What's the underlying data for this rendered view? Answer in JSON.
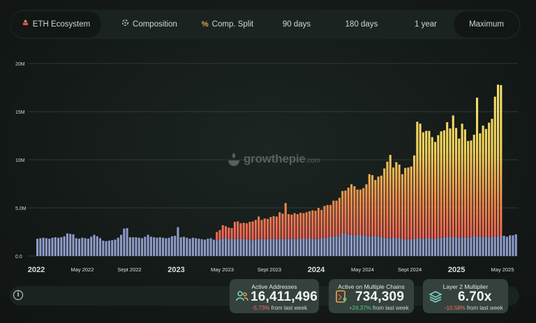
{
  "tabs": [
    {
      "label": "ETH Ecosystem",
      "icon": "eth-ecosystem-icon",
      "active": true
    },
    {
      "label": "Composition",
      "icon": "composition-icon",
      "active": false
    },
    {
      "label": "Comp. Split",
      "icon": "percent-icon",
      "active": false
    },
    {
      "label": "90 days",
      "active": false
    },
    {
      "label": "180 days",
      "active": false
    },
    {
      "label": "1 year",
      "active": false
    },
    {
      "label": "Maximum",
      "active": true
    }
  ],
  "watermark": {
    "brand": "growthepie",
    "domain": ".com"
  },
  "chart_data": {
    "type": "bar",
    "stacked": true,
    "yticks": [
      "0.0",
      "5.0M",
      "10M",
      "15M",
      "20M"
    ],
    "ylim": [
      0,
      20000000
    ],
    "xlim": [
      "2022-01-01",
      "2025-06-10"
    ],
    "xtick_labels": [
      {
        "label": "2022",
        "date": "2022-01-01",
        "bold": true
      },
      {
        "label": "May 2022",
        "date": "2022-05-01",
        "bold": false
      },
      {
        "label": "Sept 2022",
        "date": "2022-09-01",
        "bold": false
      },
      {
        "label": "2023",
        "date": "2023-01-01",
        "bold": true
      },
      {
        "label": "May 2023",
        "date": "2023-05-01",
        "bold": false
      },
      {
        "label": "Sept 2023",
        "date": "2023-09-01",
        "bold": false
      },
      {
        "label": "2024",
        "date": "2024-01-01",
        "bold": true
      },
      {
        "label": "May 2024",
        "date": "2024-05-01",
        "bold": false
      },
      {
        "label": "Sept 2024",
        "date": "2024-09-01",
        "bold": false
      },
      {
        "label": "2025",
        "date": "2025-01-01",
        "bold": true
      },
      {
        "label": "May 2025",
        "date": "2025-05-01",
        "bold": false
      }
    ],
    "colors": {
      "base": "#8e9bc8",
      "mid": "#e9515a",
      "top": "#f2d35b",
      "grid": "#39433f"
    },
    "series": [
      {
        "values": [
          1800000,
          1850000,
          1900000,
          1850000,
          1800000,
          1900000,
          1950000,
          1900000,
          1950000,
          2050000,
          2350000,
          2300000,
          2250000,
          1850000,
          1800000,
          1900000,
          1850000,
          1800000,
          2000000,
          2200000,
          2050000,
          1850000,
          1600000,
          1550000,
          1600000,
          1650000,
          1700000,
          1900000,
          2200000,
          2850000,
          2900000,
          1950000,
          1950000,
          1950000,
          1900000,
          1850000,
          2000000,
          2200000,
          2000000,
          1950000,
          1900000,
          1950000,
          1900000,
          1850000,
          1900000,
          2050000,
          2100000,
          3000000,
          1950000,
          2000000,
          1900000,
          1800000,
          1900000,
          1850000,
          1800000,
          1750000,
          1700000,
          1800000,
          1850000,
          1700000,
          1650000,
          1750000,
          1800000,
          1850000,
          1750000,
          1800000,
          1750000,
          1800000,
          1800000,
          1750000,
          1700000,
          1700000,
          1650000,
          1700000,
          1750000,
          1750000,
          1700000,
          1750000,
          1800000,
          1800000,
          1750000,
          1800000,
          1750000,
          1800000,
          1750000,
          1800000,
          1800000,
          1750000,
          1800000,
          1850000,
          1800000,
          1850000,
          1800000,
          1750000,
          1800000,
          1850000,
          1900000,
          1900000,
          2000000,
          2050000,
          2100000,
          2050000,
          2400000,
          2350000,
          2200000,
          2200000,
          2150000,
          2250000,
          2200000,
          2100000,
          2150000,
          2050000,
          2050000,
          2150000,
          2000000,
          1950000,
          1900000,
          1900000,
          1800000,
          1950000,
          1850000,
          1850000,
          1800000,
          1700000,
          1750000,
          1750000,
          1800000,
          1850000,
          1800000,
          1800000,
          1850000,
          1850000,
          1800000,
          1800000,
          1850000,
          1900000,
          1950000,
          2000000,
          1950000,
          2000000,
          1950000,
          1900000,
          1950000,
          1950000,
          1900000,
          2000000,
          2100000,
          2050000,
          1950000,
          2000000,
          2050000,
          1950000,
          2000000,
          2050000,
          2000000,
          2100000,
          2100000,
          2000000,
          2150000,
          2150000,
          2250000
        ]
      },
      {
        "values": [
          0,
          0,
          0,
          0,
          0,
          0,
          0,
          0,
          0,
          0,
          0,
          0,
          0,
          0,
          0,
          0,
          0,
          0,
          0,
          0,
          0,
          0,
          0,
          0,
          0,
          0,
          0,
          0,
          0,
          0,
          0,
          0,
          0,
          0,
          0,
          0,
          0,
          0,
          0,
          0,
          0,
          0,
          0,
          0,
          0,
          0,
          0,
          0,
          0,
          0,
          0,
          0,
          0,
          0,
          0,
          0,
          0,
          0,
          0,
          0,
          200000,
          250000,
          300000,
          350000,
          400000,
          400000,
          450000,
          500000,
          500000,
          550000,
          600000,
          650000,
          650000,
          700000,
          700000,
          750000,
          750000,
          800000,
          800000,
          850000,
          900000,
          900000,
          950000,
          1000000,
          1000000,
          1050000,
          1050000,
          1100000,
          1100000,
          1150000,
          1150000,
          1200000,
          1200000,
          1250000,
          1300000,
          1300000,
          1350000,
          1350000,
          1400000,
          1400000,
          1450000,
          1450000,
          1500000,
          1550000,
          1550000,
          1550000,
          1600000,
          1600000,
          1650000,
          1650000,
          1700000,
          1750000,
          1750000,
          1800000,
          1850000,
          1850000,
          1900000,
          1900000,
          1950000,
          1950000,
          2000000,
          2050000,
          2100000,
          2100000,
          2150000,
          2200000,
          2250000,
          2300000,
          2350000,
          2400000,
          2450000,
          2500000,
          2550000,
          2600000,
          2650000,
          2700000,
          2750000,
          2800000,
          2850000,
          2900000,
          2950000,
          3000000,
          3050000,
          3100000,
          3150000,
          3200000,
          3250000,
          3300000,
          3350000,
          3400000,
          3450000,
          3500000,
          3550000,
          3600000,
          3650000,
          3700000
        ]
      },
      {
        "values": [
          0,
          0,
          0,
          0,
          0,
          0,
          0,
          0,
          0,
          0,
          0,
          0,
          0,
          0,
          0,
          0,
          0,
          0,
          0,
          0,
          0,
          0,
          0,
          0,
          0,
          0,
          0,
          0,
          0,
          0,
          0,
          0,
          0,
          0,
          0,
          0,
          0,
          0,
          0,
          0,
          0,
          0,
          0,
          0,
          0,
          0,
          0,
          0,
          0,
          0,
          0,
          0,
          0,
          0,
          0,
          0,
          0,
          0,
          0,
          0,
          650000,
          700000,
          1100000,
          900000,
          800000,
          700000,
          1350000,
          1300000,
          1100000,
          1150000,
          1100000,
          1200000,
          1300000,
          1350000,
          1650000,
          1250000,
          1450000,
          1300000,
          1450000,
          1500000,
          1450000,
          1850000,
          1700000,
          2700000,
          1600000,
          1450000,
          1600000,
          1500000,
          1600000,
          1450000,
          1600000,
          1600000,
          1750000,
          1700000,
          1900000,
          1650000,
          1950000,
          2050000,
          1900000,
          2300000,
          2200000,
          2550000,
          2850000,
          2900000,
          3350000,
          3700000,
          3500000,
          3050000,
          3050000,
          3300000,
          3600000,
          4700000,
          4600000,
          3950000,
          4400000,
          4550000,
          5300000,
          6000000,
          6750000,
          5300000,
          5900000,
          5600000,
          4600000,
          5350000,
          5300000,
          5350000,
          6400000,
          9800000,
          9600000,
          8650000,
          8700000,
          8650000,
          8000000,
          7450000,
          8050000,
          8350000,
          8350000,
          9100000,
          8450000,
          9700000,
          8400000,
          7300000,
          8750000,
          8100000,
          6900000,
          6800000,
          7250000,
          11100000,
          7450000,
          8150000,
          7700000,
          8400000,
          8700000,
          10900000,
          12150000,
          11950000
        ]
      },
      {
        "values": [
          0,
          0,
          0,
          0,
          0,
          0,
          0,
          0,
          0,
          0,
          0,
          0,
          0,
          0,
          0,
          0,
          0,
          0,
          0,
          0,
          0,
          0,
          0,
          0,
          0,
          0,
          0,
          0,
          0,
          0,
          0,
          0,
          0,
          0,
          0,
          0,
          0,
          0,
          0,
          0,
          0,
          0,
          0,
          0,
          0,
          0,
          0,
          0,
          0,
          0,
          0,
          0,
          0,
          0,
          0,
          0,
          0,
          0,
          0,
          0,
          0,
          0,
          0,
          0,
          0,
          0,
          0,
          0,
          0,
          0,
          0,
          0,
          0,
          0,
          0,
          0,
          0,
          0,
          0,
          0,
          0,
          0,
          0,
          0,
          0,
          0,
          0,
          0,
          0,
          0,
          0,
          0,
          0,
          0,
          0,
          0,
          0,
          0,
          0,
          0,
          0,
          0,
          0,
          0,
          0,
          0,
          0,
          0,
          0,
          0,
          0,
          0,
          0,
          0,
          0,
          0,
          0,
          0,
          0,
          0,
          0,
          0,
          0,
          0,
          0,
          0,
          0,
          0,
          0,
          0,
          0,
          0,
          0,
          0,
          0,
          0,
          0,
          0,
          0,
          0,
          0,
          0,
          0,
          0,
          0,
          0,
          0,
          0,
          0,
          0,
          0,
          0,
          0,
          0,
          0,
          0,
          0,
          0,
          0,
          0,
          0,
          0,
          0,
          0,
          0,
          0,
          0,
          0,
          0,
          0,
          0
        ]
      }
    ]
  },
  "metrics": [
    {
      "title": "Active Addresses",
      "value": "16,411,496",
      "change": "-5.73%",
      "change_sign": "neg",
      "suffix": "from last week",
      "icon": "users-icon"
    },
    {
      "title": "Active on Multiple Chains",
      "value": "734,309",
      "change": "+24.37%",
      "change_sign": "pos",
      "suffix": "from last week",
      "icon": "multichain-icon"
    },
    {
      "title": "Layer 2 Multiplier",
      "value": "6.70x",
      "change": "-10.58%",
      "change_sign": "neg",
      "suffix": "from last week",
      "icon": "layers-icon"
    }
  ]
}
